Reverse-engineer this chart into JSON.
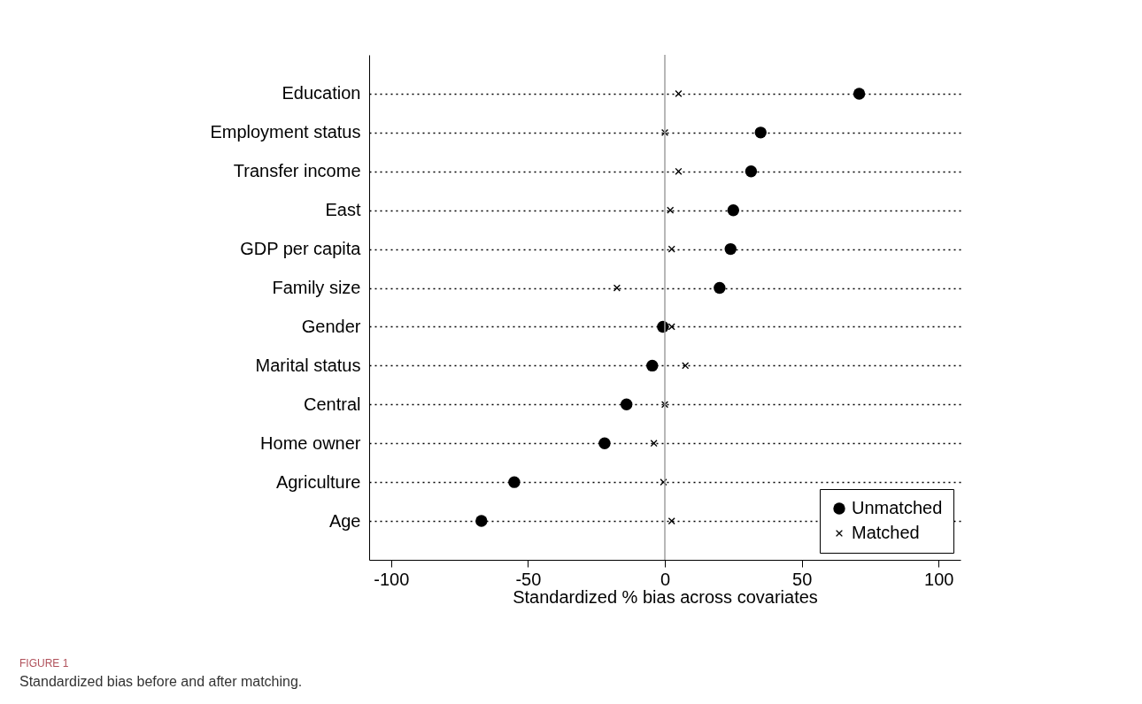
{
  "chart_data": {
    "type": "scatter",
    "title": "FIGURE 1",
    "subtitle": "Standardized bias before and after matching.",
    "xlabel": "Standardized % bias across covariates",
    "categories": [
      "Education",
      "Employment status",
      "Transfer income",
      "East",
      "GDP per capita",
      "Family size",
      "Gender",
      "Marital status",
      "Central",
      "Home owner",
      "Agriculture",
      "Age"
    ],
    "series": [
      {
        "name": "Unmatched",
        "color": "#000000",
        "marker": "circle",
        "values": [
          71,
          35,
          31.5,
          25,
          24,
          20,
          -0.7,
          -4.6,
          -14,
          -22,
          -55,
          -67
        ]
      },
      {
        "name": "Matched",
        "color": "#000000",
        "marker": "cross",
        "values": [
          5,
          0,
          5,
          2,
          2.5,
          -17.5,
          2.5,
          7.5,
          0,
          -4,
          -0.5,
          2.5
        ]
      }
    ],
    "xlim": [
      -108,
      108
    ],
    "xticks": [
      -100,
      -50,
      0,
      50,
      100
    ],
    "ref_lines": [
      {
        "axis": "x",
        "value": 0,
        "color": "#a0a0a0"
      }
    ],
    "grid": "y",
    "legend": "bottom right",
    "orientation": "horizontal"
  }
}
